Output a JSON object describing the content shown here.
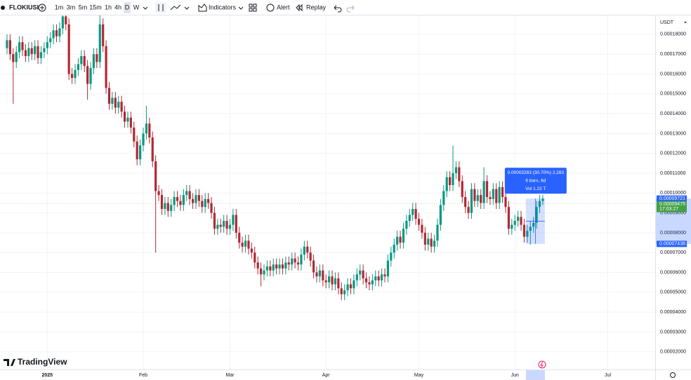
{
  "toolbar": {
    "symbol": "FLOKIUSI",
    "intervals": [
      "1m",
      "3m",
      "5m",
      "15m",
      "1h",
      "4h",
      "D",
      "W"
    ],
    "indicators": "Indicators",
    "alert": "Alert",
    "replay": "Replay"
  },
  "logo": "TradingView",
  "chart_data": {
    "type": "candlestick",
    "currency": "USDT",
    "up_color": "#089981",
    "down_color": "#b22833",
    "x": [
      -13,
      -12,
      -11,
      -10,
      -9,
      -8,
      -7,
      -6,
      -5,
      -4,
      -3,
      -2,
      -1,
      0,
      1,
      2,
      3,
      4,
      5,
      6,
      7,
      8,
      9,
      10,
      11,
      12,
      13,
      14,
      15,
      16,
      17,
      18,
      19,
      20,
      21,
      22,
      23,
      24,
      25,
      26,
      27,
      28,
      29,
      30,
      31,
      32,
      33,
      34,
      35,
      36,
      37,
      38,
      39,
      40,
      41,
      42,
      43,
      44,
      45,
      46,
      47,
      48,
      49,
      50,
      51,
      52,
      53,
      54,
      55,
      56,
      57,
      58,
      59,
      60,
      61,
      62,
      63,
      64,
      65,
      66,
      67,
      68,
      69,
      70,
      71,
      72,
      73,
      74,
      75,
      76,
      77,
      78,
      79,
      80,
      81,
      82,
      83,
      84,
      85,
      86,
      87,
      88,
      89,
      90,
      91,
      92,
      93,
      94,
      95,
      96,
      97,
      98,
      99,
      100,
      101,
      102,
      103,
      104,
      105,
      106,
      107,
      108,
      109,
      110,
      111,
      112,
      113,
      114,
      115,
      116,
      117,
      118,
      119,
      120,
      121,
      122,
      123,
      124,
      125,
      126,
      127,
      128,
      129,
      130,
      131,
      132,
      133,
      134,
      135,
      136,
      137,
      138,
      139,
      140,
      141,
      142,
      143,
      144,
      145,
      146,
      147,
      148,
      149,
      150,
      151,
      152,
      153,
      154,
      155,
      156,
      157,
      158,
      159,
      160
    ],
    "open": [
      0.000173,
      0.000177,
      0.00017,
      0.000166,
      0.000171,
      0.000176,
      0.000172,
      0.000169,
      0.000173,
      0.00017,
      0.000174,
      0.000168,
      0.000171,
      0.000173,
      0.000176,
      0.000178,
      0.000182,
      0.000179,
      0.000183,
      0.000189,
      0.000185,
      0.00016,
      0.000158,
      0.000162,
      0.000165,
      0.000169,
      0.000164,
      0.000155,
      0.000163,
      0.00017,
      0.000166,
      0.000185,
      0.000174,
      0.000153,
      0.000145,
      0.000148,
      0.000143,
      0.000146,
      0.000141,
      0.000136,
      0.000138,
      0.000133,
      0.000126,
      0.000117,
      0.000124,
      0.00013,
      0.000135,
      0.000128,
      0.000116,
      0.000101,
      9.9e-05,
      9.2e-05,
      9.5e-05,
      9.1e-05,
      9.4e-05,
      9.8e-05,
      9.6e-05,
      9.4e-05,
      9.9e-05,
      0.000101,
      9.7e-05,
      9.5e-05,
      9.9e-05,
      9.6e-05,
      9.3e-05,
      9.7e-05,
      9.5e-05,
      9e-05,
      8.2e-05,
      8.4e-05,
      8.3e-05,
      8.6e-05,
      8.2e-05,
      8.4e-05,
      8.9e-05,
      8e-05,
      7.5e-05,
      7.3e-05,
      7.6e-05,
      7.2e-05,
      7e-05,
      6.5e-05,
      6.2e-05,
      5.9e-05,
      6.1e-05,
      6.3e-05,
      6.1e-05,
      6.4e-05,
      6.2e-05,
      6.4e-05,
      6.2e-05,
      6.5e-05,
      6.4e-05,
      6.7e-05,
      6.5e-05,
      6.4e-05,
      6.9e-05,
      7.3e-05,
      7e-05,
      6.6e-05,
      6e-05,
      5.8e-05,
      6.1e-05,
      5.6e-05,
      5.5e-05,
      5.8e-05,
      5.4e-05,
      5.7e-05,
      5.2e-05,
      4.9e-05,
      5.1e-05,
      5.4e-05,
      5.2e-05,
      5.6e-05,
      5.9e-05,
      6.1e-05,
      5.7e-05,
      5.5e-05,
      5.4e-05,
      5.6e-05,
      5.8e-05,
      5.6e-05,
      5.9e-05,
      5.8e-05,
      6.6e-05,
      7e-05,
      7.4e-05,
      7.8e-05,
      7.5e-05,
      8.2e-05,
      8.6e-05,
      8.9e-05,
      9.2e-05,
      8.7e-05,
      8.4e-05,
      8e-05,
      7.4e-05,
      7.7e-05,
      7.3e-05,
      7.6e-05,
      8.4e-05,
      9.4e-05,
      0.000101,
      0.000108,
      0.000104,
      0.00011,
      0.000113,
      0.000106,
      9.8e-05,
      9.3e-05,
      9e-05,
      0.000102,
      9.6e-05,
      9.9e-05,
      9.5e-05,
      0.000106,
      9.8e-05,
      9.7e-05,
      0.000102,
      9.5e-05,
      0.000103,
      9.8e-05,
      9.3e-05,
      8.2e-05,
      8.4e-05,
      8.6e-05,
      8.8e-05,
      8.4e-05,
      7.8e-05,
      8.1e-05,
      8.3e-05,
      8.5e-05,
      9.3e-05,
      9.6e-05
    ],
    "high": [
      0.00018,
      0.00018,
      0.000173,
      0.000174,
      0.000179,
      0.000179,
      0.000175,
      0.000176,
      0.000176,
      0.000177,
      0.000177,
      0.000174,
      0.000176,
      0.000179,
      0.000181,
      0.000185,
      0.000185,
      0.000186,
      0.000195,
      0.000192,
      0.000188,
      0.000163,
      0.000165,
      0.000168,
      0.000172,
      0.000172,
      0.000167,
      0.000166,
      0.000173,
      0.000173,
      0.00019,
      0.000188,
      0.000177,
      0.000156,
      0.000151,
      0.000151,
      0.000149,
      0.000149,
      0.000144,
      0.000141,
      0.000141,
      0.000136,
      0.000129,
      0.000127,
      0.000133,
      0.000144,
      0.000138,
      0.000131,
      0.000119,
      0.000104,
      0.000102,
      9.8e-05,
      9.8e-05,
      9.7e-05,
      0.000101,
      0.000101,
      9.9e-05,
      0.000102,
      0.000104,
      0.000104,
      0.0001,
      0.000102,
      0.000102,
      9.9e-05,
      0.0001,
      0.0001,
      9.8e-05,
      9.3e-05,
      8.7e-05,
      8.7e-05,
      8.9e-05,
      8.9e-05,
      8.7e-05,
      9.2e-05,
      9.2e-05,
      8.3e-05,
      7.8e-05,
      7.9e-05,
      7.9e-05,
      7.5e-05,
      7.3e-05,
      6.8e-05,
      6.5e-05,
      6.4e-05,
      6.6e-05,
      6.6e-05,
      6.7e-05,
      6.7e-05,
      6.7e-05,
      6.7e-05,
      6.8e-05,
      6.8e-05,
      7e-05,
      7e-05,
      6.8e-05,
      7.2e-05,
      7.6e-05,
      7.6e-05,
      7.3e-05,
      6.9e-05,
      6.3e-05,
      6.4e-05,
      6.4e-05,
      5.9e-05,
      6.1e-05,
      6.1e-05,
      6e-05,
      6e-05,
      5.5e-05,
      5.4e-05,
      5.7e-05,
      5.7e-05,
      5.9e-05,
      6.2e-05,
      6.4e-05,
      6.4e-05,
      6e-05,
      5.8e-05,
      5.9e-05,
      6.1e-05,
      6.1e-05,
      6.2e-05,
      6.2e-05,
      6.9e-05,
      7.3e-05,
      7.7e-05,
      8.1e-05,
      8.1e-05,
      8.5e-05,
      8.9e-05,
      9.2e-05,
      9.5e-05,
      9.5e-05,
      9e-05,
      8.7e-05,
      8.3e-05,
      8e-05,
      8e-05,
      7.9e-05,
      8.7e-05,
      9.7e-05,
      0.000104,
      0.000111,
      0.000111,
      0.000124,
      0.000116,
      0.000116,
      0.000109,
      0.000101,
      9.6e-05,
      0.000105,
      0.000105,
      0.000102,
      0.000102,
      0.000113,
      0.000109,
      0.000101,
      0.000105,
      0.000105,
      0.000106,
      0.000106,
      0.000101,
      9.6e-05,
      8.7e-05,
      8.9e-05,
      9.1e-05,
      9.1e-05,
      8.7e-05,
      8.4e-05,
      8.6e-05,
      8.8e-05,
      9.6e-05,
      9.9e-05,
      9.9e-05
    ],
    "low": [
      0.00017,
      0.000167,
      0.000145,
      0.000163,
      0.000168,
      0.000169,
      0.000166,
      0.000166,
      0.000167,
      0.000167,
      0.000165,
      0.000165,
      0.000168,
      0.00017,
      0.000173,
      0.000175,
      0.000176,
      0.000176,
      0.00018,
      0.000182,
      0.000157,
      0.000155,
      0.000155,
      0.000159,
      0.000162,
      0.000161,
      0.000147,
      0.000152,
      0.00016,
      0.000163,
      0.000163,
      0.000171,
      0.00015,
      0.000142,
      0.000142,
      0.00014,
      0.00014,
      0.000138,
      0.000133,
      0.000133,
      0.00013,
      0.000123,
      0.000114,
      0.000114,
      0.000121,
      0.000127,
      0.000125,
      0.000113,
      7e-05,
      9.6e-05,
      8.9e-05,
      8.9e-05,
      8.8e-05,
      8.8e-05,
      9.1e-05,
      9.3e-05,
      9.1e-05,
      9.1e-05,
      9.6e-05,
      9.4e-05,
      9.2e-05,
      9.2e-05,
      9.3e-05,
      9e-05,
      9e-05,
      9.2e-05,
      8.7e-05,
      7.9e-05,
      7.9e-05,
      8e-05,
      8e-05,
      7.9e-05,
      7.9e-05,
      8.1e-05,
      7.7e-05,
      7.2e-05,
      7e-05,
      7e-05,
      6.9e-05,
      6.7e-05,
      6.2e-05,
      5.9e-05,
      5.3e-05,
      5.6e-05,
      5.8e-05,
      5.8e-05,
      5.8e-05,
      5.9e-05,
      5.9e-05,
      5.9e-05,
      5.9e-05,
      6.1e-05,
      6.1e-05,
      6.2e-05,
      6.1e-05,
      6.1e-05,
      6.6e-05,
      6.7e-05,
      6.3e-05,
      5.7e-05,
      5.5e-05,
      5.5e-05,
      5.3e-05,
      5.2e-05,
      5.2e-05,
      5.1e-05,
      5.1e-05,
      4.9e-05,
      4.6e-05,
      4.6e-05,
      4.8e-05,
      4.9e-05,
      4.9e-05,
      5.3e-05,
      5.6e-05,
      5.4e-05,
      5.2e-05,
      5.1e-05,
      5.1e-05,
      5.3e-05,
      5.3e-05,
      5.3e-05,
      5.5e-05,
      5.5e-05,
      6.3e-05,
      6.7e-05,
      7.1e-05,
      7.2e-05,
      7.2e-05,
      7.9e-05,
      8.3e-05,
      8.6e-05,
      8.4e-05,
      8.1e-05,
      7.7e-05,
      7.1e-05,
      7.1e-05,
      7e-05,
      7e-05,
      7.3e-05,
      8.1e-05,
      9.1e-05,
      9.8e-05,
      0.000101,
      0.000101,
      0.000107,
      0.000103,
      9.5e-05,
      9e-05,
      8.7e-05,
      8.7e-05,
      9.3e-05,
      9.3e-05,
      9.2e-05,
      9.2e-05,
      9.5e-05,
      9.4e-05,
      9.4e-05,
      9.2e-05,
      9.2e-05,
      9.5e-05,
      9e-05,
      7.9e-05,
      7.9e-05,
      8.1e-05,
      8.3e-05,
      8.1e-05,
      7.5e-05,
      7.5e-05,
      7.4e-05,
      8e-05,
      8.2e-05,
      9e-05,
      9.4e-05
    ],
    "close": [
      0.000177,
      0.00017,
      0.000166,
      0.000171,
      0.000176,
      0.000172,
      0.000169,
      0.000173,
      0.00017,
      0.000174,
      0.000168,
      0.000171,
      0.000173,
      0.000176,
      0.000178,
      0.000182,
      0.000179,
      0.000183,
      0.000189,
      0.000185,
      0.00016,
      0.000158,
      0.000162,
      0.000165,
      0.000169,
      0.000164,
      0.000155,
      0.000163,
      0.00017,
      0.000166,
      0.000185,
      0.000174,
      0.000153,
      0.000145,
      0.000148,
      0.000143,
      0.000146,
      0.000141,
      0.000136,
      0.000138,
      0.000133,
      0.000126,
      0.000117,
      0.000124,
      0.00013,
      0.000135,
      0.000128,
      0.000116,
      0.000101,
      9.9e-05,
      9.2e-05,
      9.5e-05,
      9.1e-05,
      9.4e-05,
      9.8e-05,
      9.6e-05,
      9.4e-05,
      9.9e-05,
      0.000101,
      9.7e-05,
      9.5e-05,
      9.9e-05,
      9.6e-05,
      9.3e-05,
      9.7e-05,
      9.5e-05,
      9e-05,
      8.2e-05,
      8.4e-05,
      8.3e-05,
      8.6e-05,
      8.2e-05,
      8.4e-05,
      8.9e-05,
      8e-05,
      7.5e-05,
      7.3e-05,
      7.6e-05,
      7.2e-05,
      7e-05,
      6.5e-05,
      6.2e-05,
      5.9e-05,
      6.1e-05,
      6.3e-05,
      6.1e-05,
      6.4e-05,
      6.2e-05,
      6.4e-05,
      6.2e-05,
      6.5e-05,
      6.4e-05,
      6.7e-05,
      6.5e-05,
      6.4e-05,
      6.9e-05,
      7.3e-05,
      7e-05,
      6.6e-05,
      6e-05,
      5.8e-05,
      6.1e-05,
      5.6e-05,
      5.5e-05,
      5.8e-05,
      5.4e-05,
      5.7e-05,
      5.2e-05,
      4.9e-05,
      5.1e-05,
      5.4e-05,
      5.2e-05,
      5.6e-05,
      5.9e-05,
      6.1e-05,
      5.7e-05,
      5.5e-05,
      5.4e-05,
      5.6e-05,
      5.8e-05,
      5.6e-05,
      5.9e-05,
      5.8e-05,
      6.6e-05,
      7e-05,
      7.4e-05,
      7.8e-05,
      7.5e-05,
      8.2e-05,
      8.6e-05,
      8.9e-05,
      9.2e-05,
      8.7e-05,
      8.4e-05,
      8e-05,
      7.4e-05,
      7.7e-05,
      7.3e-05,
      7.6e-05,
      8.4e-05,
      9.4e-05,
      0.000101,
      0.000108,
      0.000104,
      0.00011,
      0.000113,
      0.000106,
      9.8e-05,
      9.3e-05,
      9e-05,
      0.000102,
      9.6e-05,
      9.9e-05,
      9.5e-05,
      0.000106,
      9.8e-05,
      9.7e-05,
      0.000102,
      9.5e-05,
      0.000103,
      9.8e-05,
      9.3e-05,
      8.2e-05,
      8.4e-05,
      8.6e-05,
      8.8e-05,
      8.4e-05,
      7.8e-05,
      8.1e-05,
      8.3e-05,
      8.5e-05,
      9.3e-05,
      9.6e-05,
      9.721e-05
    ],
    "xlim": [
      -15.26,
      196.3
    ],
    "xticks": [
      {
        "value": 0,
        "label": "2025"
      },
      {
        "value": 31,
        "label": "Feb"
      },
      {
        "value": 59,
        "label": "Mar"
      },
      {
        "value": 90,
        "label": "Apr"
      },
      {
        "value": 120,
        "label": "May"
      },
      {
        "value": 151,
        "label": "Jun"
      },
      {
        "value": 181,
        "label": "Jul"
      }
    ],
    "ylim": [
      1.11e-05,
      0.0001895
    ],
    "yticks": [
      {
        "value": 2e-05,
        "label": "0.00002000"
      },
      {
        "value": 3e-05,
        "label": "0.00003000"
      },
      {
        "value": 4e-05,
        "label": "0.00004000"
      },
      {
        "value": 5e-05,
        "label": "0.00005000"
      },
      {
        "value": 6e-05,
        "label": "0.00006000"
      },
      {
        "value": 7e-05,
        "label": "0.00007000"
      },
      {
        "value": 8e-05,
        "label": "0.00008000"
      },
      {
        "value": 9e-05,
        "label": "0.00009000"
      },
      {
        "value": 0.0001,
        "label": "0.00010000"
      },
      {
        "value": 0.00011,
        "label": "0.00011000"
      },
      {
        "value": 0.00012,
        "label": "0.00012000"
      },
      {
        "value": 0.00013,
        "label": "0.00013000"
      },
      {
        "value": 0.00014,
        "label": "0.00014000"
      },
      {
        "value": 0.00015,
        "label": "0.00015000"
      },
      {
        "value": 0.00016,
        "label": "0.00016000"
      },
      {
        "value": 0.00017,
        "label": "0.00017000"
      },
      {
        "value": 0.00018,
        "label": "0.00018000"
      }
    ],
    "grid": true,
    "price_labels": [
      {
        "value": 9.721e-05,
        "label": "0.00009721",
        "color": "#2962ff"
      },
      {
        "value": 9.475e-05,
        "label": "0.00009475",
        "color": "#43a047"
      },
      {
        "value": 7.438e-05,
        "label": "0.00007438",
        "color": "#2962ff"
      }
    ],
    "countdown": "17:03:27",
    "measure": {
      "lines": [
        "0.00002283 (30.70%) 2,283",
        "6 bars, 6d",
        "Vol 1.22 T"
      ]
    }
  }
}
